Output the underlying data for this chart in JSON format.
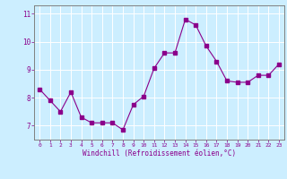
{
  "x": [
    0,
    1,
    2,
    3,
    4,
    5,
    6,
    7,
    8,
    9,
    10,
    11,
    12,
    13,
    14,
    15,
    16,
    17,
    18,
    19,
    20,
    21,
    22,
    23
  ],
  "y": [
    8.3,
    7.9,
    7.5,
    8.2,
    7.3,
    7.1,
    7.1,
    7.1,
    6.85,
    7.75,
    8.05,
    9.05,
    9.6,
    9.6,
    10.8,
    10.6,
    9.85,
    9.3,
    8.6,
    8.55,
    8.55,
    8.8,
    8.8,
    9.2
  ],
  "line_color": "#8B008B",
  "marker": "s",
  "marker_size": 2.5,
  "bg_color": "#cceeff",
  "grid_color": "#ffffff",
  "xlabel": "Windchill (Refroidissement éolien,°C)",
  "ylabel_ticks": [
    7,
    8,
    9,
    10,
    11
  ],
  "ylim": [
    6.5,
    11.3
  ],
  "xlim": [
    -0.5,
    23.5
  ],
  "axis_color": "#808080",
  "font_color": "#8B008B"
}
